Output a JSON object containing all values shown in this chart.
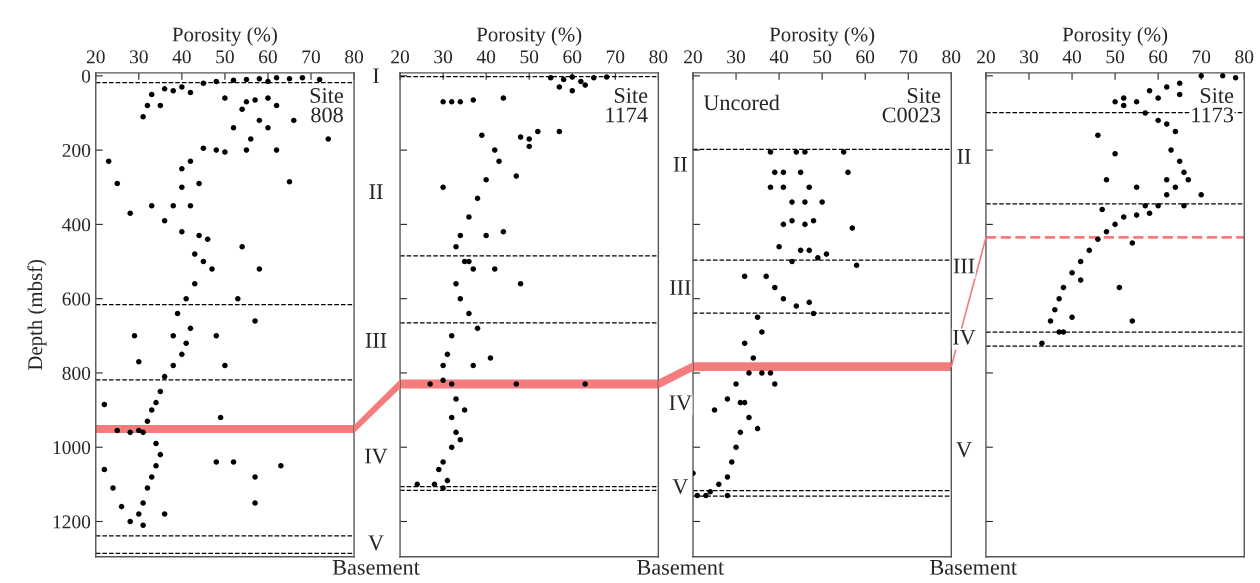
{
  "chart_data": [
    {
      "type": "scatter",
      "title": "Site\n808",
      "xlabel": "Porosity (%)",
      "ylabel": "Depth (mbsf)",
      "xlim": [
        20,
        80
      ],
      "xticks": [
        20,
        30,
        40,
        50,
        60,
        70,
        80
      ],
      "ylim": [
        1295,
        -8
      ],
      "yticks": [
        0,
        200,
        400,
        600,
        800,
        1000,
        1200
      ],
      "marker": "circle",
      "series": [
        {
          "color": "#000000",
          "x": [
            55,
            58,
            62,
            65,
            68,
            72,
            60,
            52,
            48,
            45,
            40,
            36,
            33,
            38,
            42,
            50,
            55,
            57,
            60,
            62,
            54,
            58,
            60,
            66,
            52,
            56,
            74,
            48,
            50,
            55,
            45,
            62,
            65,
            42,
            44,
            40,
            25,
            23,
            31,
            32,
            35,
            40,
            38,
            42,
            28,
            33,
            36,
            40,
            44,
            46,
            43,
            45,
            47,
            43,
            41,
            39,
            42,
            38,
            41,
            40,
            38,
            36,
            35,
            34,
            33,
            32,
            31,
            30,
            25,
            28,
            34,
            35,
            34,
            33,
            32,
            31,
            30,
            31,
            22,
            22,
            24,
            26,
            28,
            36,
            52,
            57,
            57,
            63,
            49,
            48,
            54,
            58,
            53,
            57,
            48,
            50,
            29,
            30
          ],
          "values": [
            10,
            8,
            5,
            8,
            5,
            10,
            15,
            12,
            15,
            20,
            30,
            35,
            50,
            40,
            45,
            60,
            70,
            65,
            60,
            80,
            90,
            120,
            140,
            120,
            140,
            170,
            170,
            200,
            205,
            200,
            195,
            200,
            285,
            230,
            290,
            300,
            290,
            230,
            110,
            80,
            80,
            250,
            350,
            350,
            370,
            350,
            390,
            420,
            430,
            440,
            480,
            500,
            520,
            560,
            600,
            640,
            680,
            700,
            720,
            750,
            780,
            810,
            850,
            880,
            900,
            930,
            960,
            955,
            955,
            960,
            990,
            1020,
            1050,
            1080,
            1110,
            1150,
            1180,
            1210,
            885,
            1060,
            1110,
            1160,
            1200,
            1180,
            1040,
            1080,
            1150,
            1050,
            920,
            1040,
            460,
            520,
            600,
            660,
            700,
            780,
            700,
            770
          ]
        }
      ],
      "ref_lines": [
        {
          "axis": "y",
          "value": 18,
          "line_style": "dashed"
        },
        {
          "axis": "y",
          "value": 616,
          "line_style": "dashed"
        },
        {
          "axis": "y",
          "value": 819,
          "line_style": "dashed"
        },
        {
          "axis": "y",
          "value": 1239,
          "line_style": "dashed"
        },
        {
          "axis": "y",
          "value": 1286,
          "line_style": "dashed"
        }
      ],
      "bands": [
        {
          "axis": "y",
          "from": 940,
          "to": 962,
          "color": "#f47c7c"
        }
      ],
      "annotations": [
        "I",
        "II",
        "III",
        "IV",
        "V",
        "Basement"
      ]
    },
    {
      "type": "scatter",
      "title": "Site\n1174",
      "xlabel": "Porosity (%)",
      "xlim": [
        20,
        80
      ],
      "xticks": [
        20,
        30,
        40,
        50,
        60,
        70,
        80
      ],
      "ylim": [
        1295,
        -8
      ],
      "yticks": [
        0,
        200,
        400,
        600,
        800,
        1000,
        1200
      ],
      "tick_labels": "x",
      "marker": "circle",
      "series": [
        {
          "color": "#000000",
          "x": [
            55,
            58,
            60,
            62,
            65,
            68,
            57,
            60,
            63,
            30,
            32,
            34,
            37,
            44,
            39,
            48,
            52,
            50,
            42,
            43,
            40,
            38,
            36,
            34,
            33,
            35,
            37,
            42,
            33,
            34,
            36,
            38,
            32,
            31,
            30,
            30,
            32,
            27,
            47,
            63,
            33,
            32,
            33,
            32,
            30,
            29,
            31,
            30,
            24,
            28,
            48,
            50,
            57,
            30,
            47,
            44,
            36,
            40,
            37,
            41,
            35,
            34
          ],
          "values": [
            5,
            10,
            3,
            15,
            5,
            3,
            30,
            40,
            25,
            70,
            70,
            70,
            65,
            60,
            160,
            165,
            150,
            170,
            200,
            230,
            280,
            330,
            380,
            430,
            460,
            500,
            520,
            520,
            560,
            600,
            640,
            680,
            700,
            750,
            780,
            820,
            830,
            830,
            830,
            830,
            870,
            920,
            960,
            1000,
            1040,
            1060,
            1090,
            1110,
            1100,
            1100,
            560,
            190,
            150,
            300,
            270,
            420,
            500,
            430,
            780,
            760,
            900,
            980
          ]
        }
      ],
      "ref_lines": [
        {
          "axis": "y",
          "value": 2,
          "line_style": "dashed"
        },
        {
          "axis": "y",
          "value": 485,
          "line_style": "dashed"
        },
        {
          "axis": "y",
          "value": 665,
          "line_style": "dashed"
        },
        {
          "axis": "y",
          "value": 1106,
          "line_style": "dashed"
        },
        {
          "axis": "y",
          "value": 1116,
          "line_style": "dashed"
        }
      ],
      "bands": [
        {
          "axis": "y",
          "from": 818,
          "to": 842,
          "color": "#f47c7c"
        }
      ],
      "annotations": [
        "II",
        "III",
        "IV",
        "V",
        "Basement"
      ]
    },
    {
      "type": "scatter",
      "title": "Site\nC0023",
      "xlabel": "Porosity (%)",
      "xlim": [
        20,
        80
      ],
      "xticks": [
        20,
        30,
        40,
        50,
        60,
        70,
        80
      ],
      "ylim": [
        1295,
        -8
      ],
      "yticks": [
        0,
        200,
        400,
        600,
        800,
        1000,
        1200
      ],
      "tick_labels": "x",
      "marker": "circle",
      "series": [
        {
          "color": "#000000",
          "x": [
            38,
            44,
            46,
            55,
            39,
            41,
            45,
            56,
            38,
            41,
            47,
            43,
            46,
            50,
            57,
            41,
            43,
            46,
            48,
            40,
            45,
            47,
            51,
            43,
            49,
            58,
            32,
            37,
            39,
            41,
            44,
            47,
            48,
            35,
            36,
            32,
            34,
            33,
            36,
            38,
            30,
            31,
            28,
            25,
            32,
            33,
            31,
            30,
            29,
            28,
            26,
            24,
            23,
            21,
            28,
            20,
            39,
            35
          ],
          "values": [
            205,
            205,
            205,
            205,
            260,
            260,
            260,
            260,
            300,
            300,
            300,
            340,
            340,
            340,
            410,
            400,
            390,
            400,
            390,
            460,
            470,
            470,
            480,
            500,
            490,
            510,
            540,
            540,
            570,
            600,
            620,
            610,
            640,
            650,
            690,
            720,
            760,
            800,
            800,
            800,
            830,
            880,
            870,
            900,
            880,
            920,
            960,
            1000,
            1040,
            1080,
            1100,
            1120,
            1130,
            1130,
            1130,
            1070,
            830,
            950
          ]
        }
      ],
      "ref_lines": [
        {
          "axis": "y",
          "value": 198,
          "line_style": "dashed"
        },
        {
          "axis": "y",
          "value": 496,
          "line_style": "dashed"
        },
        {
          "axis": "y",
          "value": 639,
          "line_style": "dashed"
        },
        {
          "axis": "y",
          "value": 1117,
          "line_style": "dashed"
        },
        {
          "axis": "y",
          "value": 1132,
          "line_style": "dashed"
        }
      ],
      "bands": [
        {
          "axis": "y",
          "from": 771,
          "to": 795,
          "color": "#f47c7c"
        }
      ],
      "subtitle": "Uncored",
      "annotations": [
        "Basement"
      ]
    },
    {
      "type": "scatter",
      "title": "Site\n1173",
      "xlabel": "Porosity (%)",
      "xlim": [
        20,
        80
      ],
      "xticks": [
        20,
        30,
        40,
        50,
        60,
        70,
        80
      ],
      "ylim": [
        1295,
        -8
      ],
      "yticks": [
        0,
        200,
        400,
        600,
        800,
        1000,
        1200
      ],
      "tick_labels": "x",
      "marker": "circle",
      "series": [
        {
          "color": "#000000",
          "x": [
            70,
            75,
            78,
            65,
            62,
            58,
            52,
            52,
            50,
            55,
            60,
            65,
            57,
            60,
            62,
            64,
            63,
            65,
            66,
            64,
            67,
            62,
            60,
            58,
            55,
            52,
            50,
            48,
            46,
            44,
            42,
            40,
            38,
            37,
            36,
            35,
            37,
            33,
            48,
            46,
            50,
            55,
            57,
            47,
            54,
            42,
            51,
            54,
            66,
            70,
            62,
            40,
            38
          ],
          "values": [
            0,
            0,
            5,
            20,
            30,
            40,
            60,
            80,
            70,
            70,
            60,
            50,
            100,
            120,
            130,
            150,
            200,
            230,
            260,
            300,
            280,
            320,
            350,
            370,
            375,
            380,
            400,
            420,
            440,
            470,
            500,
            530,
            570,
            600,
            630,
            660,
            690,
            720,
            280,
            160,
            210,
            300,
            350,
            360,
            450,
            550,
            570,
            660,
            350,
            320,
            280,
            650,
            690
          ]
        }
      ],
      "ref_lines": [
        {
          "axis": "y",
          "value": 99,
          "line_style": "dashed"
        },
        {
          "axis": "y",
          "value": 345,
          "line_style": "dashed"
        },
        {
          "axis": "y",
          "value": 690,
          "line_style": "dashed"
        },
        {
          "axis": "y",
          "value": 728,
          "line_style": "dashed"
        },
        {
          "axis": "y",
          "value": 435,
          "color": "#f47c7c",
          "line_style": "dashed"
        }
      ],
      "annotations": [
        "II",
        "III",
        "IV",
        "V"
      ]
    }
  ]
}
